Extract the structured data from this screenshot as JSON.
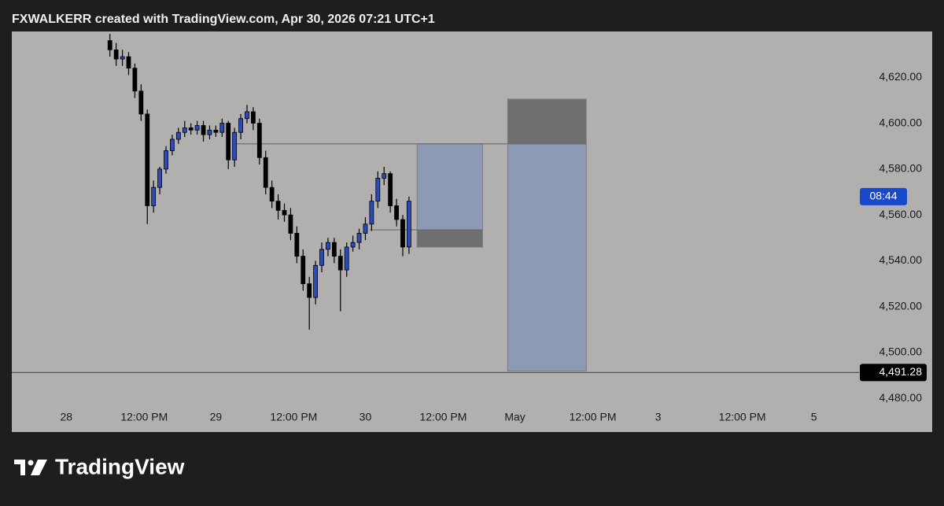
{
  "chart_data": {
    "type": "candlestick",
    "title": "FXWALKERR created with TradingView.com, Apr 30, 2026 07:21 UTC+1",
    "brand": "TradingView",
    "up_color": "#2a4bb8",
    "down_color": "#000000",
    "x": [
      14,
      16,
      18,
      20,
      22,
      24,
      26,
      28,
      30,
      32,
      34,
      36,
      38,
      40,
      42,
      44,
      46,
      48,
      50,
      52,
      54,
      56,
      58,
      60,
      62,
      64,
      66,
      68,
      70,
      72,
      74,
      76,
      78,
      80,
      82,
      84,
      86,
      88,
      90,
      92,
      94,
      96,
      98,
      100,
      102,
      104,
      106,
      108,
      110
    ],
    "open": [
      4636,
      4632,
      4628,
      4629,
      4624,
      4614,
      4604,
      4564,
      4572,
      4580,
      4588,
      4593,
      4596,
      4598,
      4597,
      4599,
      4595,
      4597,
      4596,
      4600,
      4584,
      4596,
      4602,
      4605,
      4600,
      4585,
      4572,
      4566,
      4562,
      4560,
      4552,
      4542,
      4530,
      4524,
      4538,
      4545,
      4548,
      4542,
      4536,
      4546,
      4548,
      4552,
      4556,
      4566,
      4576,
      4578,
      4564,
      4558,
      4546
    ],
    "high": [
      4639,
      4635,
      4632,
      4631,
      4626,
      4617,
      4606,
      4575,
      4581,
      4590,
      4595,
      4598,
      4601,
      4600,
      4601,
      4601,
      4599,
      4599,
      4602,
      4601,
      4598,
      4604,
      4608,
      4607,
      4602,
      4588,
      4575,
      4569,
      4565,
      4563,
      4555,
      4545,
      4533,
      4540,
      4548,
      4550,
      4550,
      4545,
      4548,
      4551,
      4554,
      4559,
      4569,
      4579,
      4581,
      4579,
      4567,
      4560,
      4568
    ],
    "low": [
      4629,
      4625,
      4625,
      4621,
      4611,
      4601,
      4556,
      4561,
      4569,
      4578,
      4586,
      4591,
      4594,
      4595,
      4595,
      4592,
      4593,
      4594,
      4594,
      4580,
      4581,
      4593,
      4600,
      4597,
      4582,
      4569,
      4563,
      4558,
      4557,
      4549,
      4539,
      4527,
      4510,
      4521,
      4535,
      4542,
      4539,
      4518,
      4533,
      4544,
      4545,
      4549,
      4553,
      4563,
      4573,
      4561,
      4555,
      4542,
      4543
    ],
    "close": [
      4632,
      4628,
      4629,
      4624,
      4614,
      4604,
      4564,
      4572,
      4580,
      4588,
      4593,
      4596,
      4598,
      4597,
      4599,
      4595,
      4597,
      4596,
      4600,
      4584,
      4596,
      4602,
      4605,
      4600,
      4585,
      4572,
      4566,
      4562,
      4560,
      4552,
      4542,
      4530,
      4524,
      4538,
      4545,
      4548,
      4542,
      4536,
      4546,
      4548,
      4552,
      4556,
      4566,
      4576,
      4578,
      4564,
      4558,
      4546,
      4566
    ],
    "xlim": [
      -17.5,
      252.7
    ],
    "ylim": [
      4477,
      4640
    ],
    "xticks": [
      {
        "value": 0,
        "label": "28"
      },
      {
        "value": 25,
        "label": "12:00 PM"
      },
      {
        "value": 48,
        "label": "29"
      },
      {
        "value": 73,
        "label": "12:00 PM"
      },
      {
        "value": 96,
        "label": "30"
      },
      {
        "value": 121,
        "label": "12:00 PM"
      },
      {
        "value": 144,
        "label": "May"
      },
      {
        "value": 169,
        "label": "12:00 PM"
      },
      {
        "value": 190,
        "label": "3"
      },
      {
        "value": 217,
        "label": "12:00 PM"
      },
      {
        "value": 240,
        "label": "5"
      }
    ],
    "yticks": [
      {
        "value": 4480,
        "label": "4,480.00"
      },
      {
        "value": 4500,
        "label": "4,500.00"
      },
      {
        "value": 4520,
        "label": "4,520.00"
      },
      {
        "value": 4540,
        "label": "4,540.00"
      },
      {
        "value": 4560,
        "label": "4,560.00"
      },
      {
        "value": 4580,
        "label": "4,580.00"
      },
      {
        "value": 4600,
        "label": "4,600.00"
      },
      {
        "value": 4620,
        "label": "4,620.00"
      }
    ],
    "boxes": [
      {
        "x0": 112.6,
        "x1": 133.6,
        "y0": 4553.5,
        "y1": 4591,
        "color": "#8e9ab5"
      },
      {
        "x0": 112.6,
        "x1": 133.6,
        "y0": 4546,
        "y1": 4553.5,
        "color": "#6f6f6f"
      },
      {
        "x0": 141.7,
        "x1": 166.9,
        "y0": 4492,
        "y1": 4591,
        "color": "#8e9ab5"
      },
      {
        "x0": 141.7,
        "x1": 166.9,
        "y0": 4591,
        "y1": 4610.5,
        "color": "#6f6f6f"
      }
    ],
    "lines": [
      {
        "x0": 54.5,
        "x1": 166.9,
        "value": 4591
      },
      {
        "x0": 97.5,
        "x1": 133.6,
        "value": 4553.5
      }
    ],
    "price_line": {
      "value": 4491.28,
      "label": "4,491.28"
    },
    "countdown": {
      "value": 4568,
      "label": "08:44"
    }
  }
}
